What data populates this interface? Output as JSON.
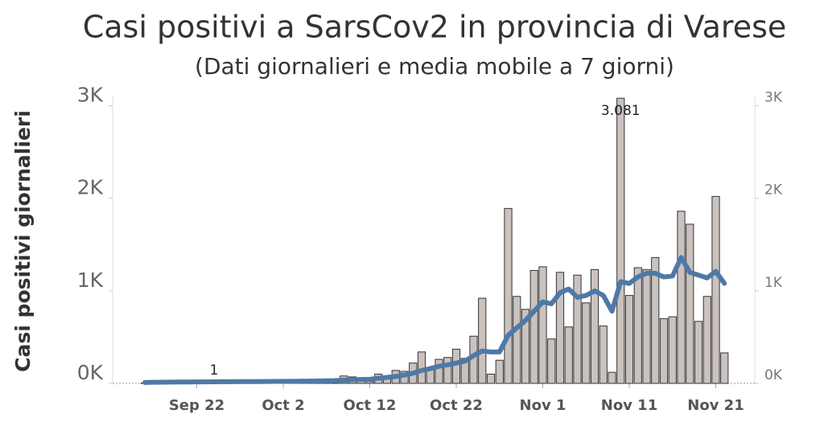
{
  "chart_data": {
    "type": "bar",
    "title": "Casi positivi  a SarsCov2 in provincia di Varese",
    "subtitle": "(Dati giornalieri e media mobile  a 7 giorni)",
    "y_label": "Casi positivi giornalieri",
    "categories": [
      null,
      null,
      null,
      null,
      null,
      null,
      "Sep 22",
      null,
      null,
      null,
      null,
      null,
      null,
      null,
      null,
      null,
      "Oct 2",
      null,
      null,
      null,
      null,
      null,
      null,
      null,
      null,
      null,
      "Oct 12",
      null,
      null,
      null,
      null,
      null,
      null,
      null,
      null,
      null,
      "Oct 22",
      null,
      null,
      null,
      null,
      null,
      null,
      null,
      null,
      null,
      "Nov 1",
      null,
      null,
      null,
      null,
      null,
      null,
      null,
      null,
      null,
      "Nov 11",
      null,
      null,
      null,
      null,
      null,
      null,
      null,
      null,
      null,
      "Nov 21",
      null
    ],
    "series": [
      {
        "type": "bar",
        "color": "#c9c2bf",
        "values": [
          4,
          6,
          3,
          5,
          8,
          2,
          6,
          9,
          1,
          7,
          10,
          5,
          12,
          9,
          14,
          8,
          15,
          11,
          18,
          13,
          20,
          16,
          25,
          80,
          70,
          40,
          20,
          100,
          70,
          140,
          130,
          220,
          340,
          170,
          260,
          280,
          370,
          270,
          510,
          920,
          100,
          250,
          1890,
          940,
          800,
          1220,
          1260,
          480,
          1200,
          610,
          1170,
          870,
          1230,
          620,
          120,
          3081,
          950,
          1250,
          1230,
          1360,
          700,
          720,
          1860,
          1720,
          670,
          940,
          2020,
          330
        ],
        "value_labels": [
          null,
          null,
          null,
          null,
          null,
          null,
          null,
          null,
          "1",
          null,
          null,
          null,
          null,
          null,
          null,
          null,
          null,
          null,
          null,
          null,
          null,
          null,
          null,
          null,
          null,
          null,
          null,
          null,
          null,
          null,
          null,
          null,
          null,
          null,
          null,
          null,
          null,
          null,
          null,
          null,
          null,
          null,
          null,
          null,
          null,
          null,
          null,
          null,
          null,
          null,
          null,
          null,
          null,
          null,
          null,
          "3.081",
          null,
          null,
          null,
          null,
          null,
          null,
          null,
          null,
          null,
          null,
          null,
          null
        ]
      },
      {
        "type": "line",
        "color": "#4e79a7",
        "axis": "y2",
        "values": [
          10,
          12,
          13,
          14,
          15,
          15,
          16,
          16,
          17,
          18,
          18,
          19,
          20,
          20,
          21,
          22,
          22,
          23,
          24,
          25,
          26,
          28,
          30,
          35,
          40,
          42,
          45,
          55,
          65,
          75,
          90,
          110,
          140,
          160,
          185,
          200,
          220,
          240,
          300,
          350,
          340,
          340,
          520,
          600,
          680,
          780,
          880,
          860,
          980,
          1020,
          930,
          950,
          1000,
          950,
          780,
          1100,
          1080,
          1150,
          1190,
          1190,
          1150,
          1160,
          1360,
          1200,
          1170,
          1140,
          1210,
          1080
        ]
      }
    ],
    "ylim": [
      0,
      3100
    ],
    "yticks": [
      {
        "value": 0,
        "label": "0K"
      },
      {
        "value": 1000,
        "label": "1K"
      },
      {
        "value": 2000,
        "label": "2K"
      },
      {
        "value": 3000,
        "label": "3K"
      }
    ],
    "y2lim": [
      0,
      3100
    ],
    "y2ticks": [
      {
        "value": 0,
        "label": "0K"
      },
      {
        "value": 1000,
        "label": "1K"
      },
      {
        "value": 2000,
        "label": "2K"
      },
      {
        "value": 3000,
        "label": "3K"
      }
    ],
    "grid": false
  }
}
